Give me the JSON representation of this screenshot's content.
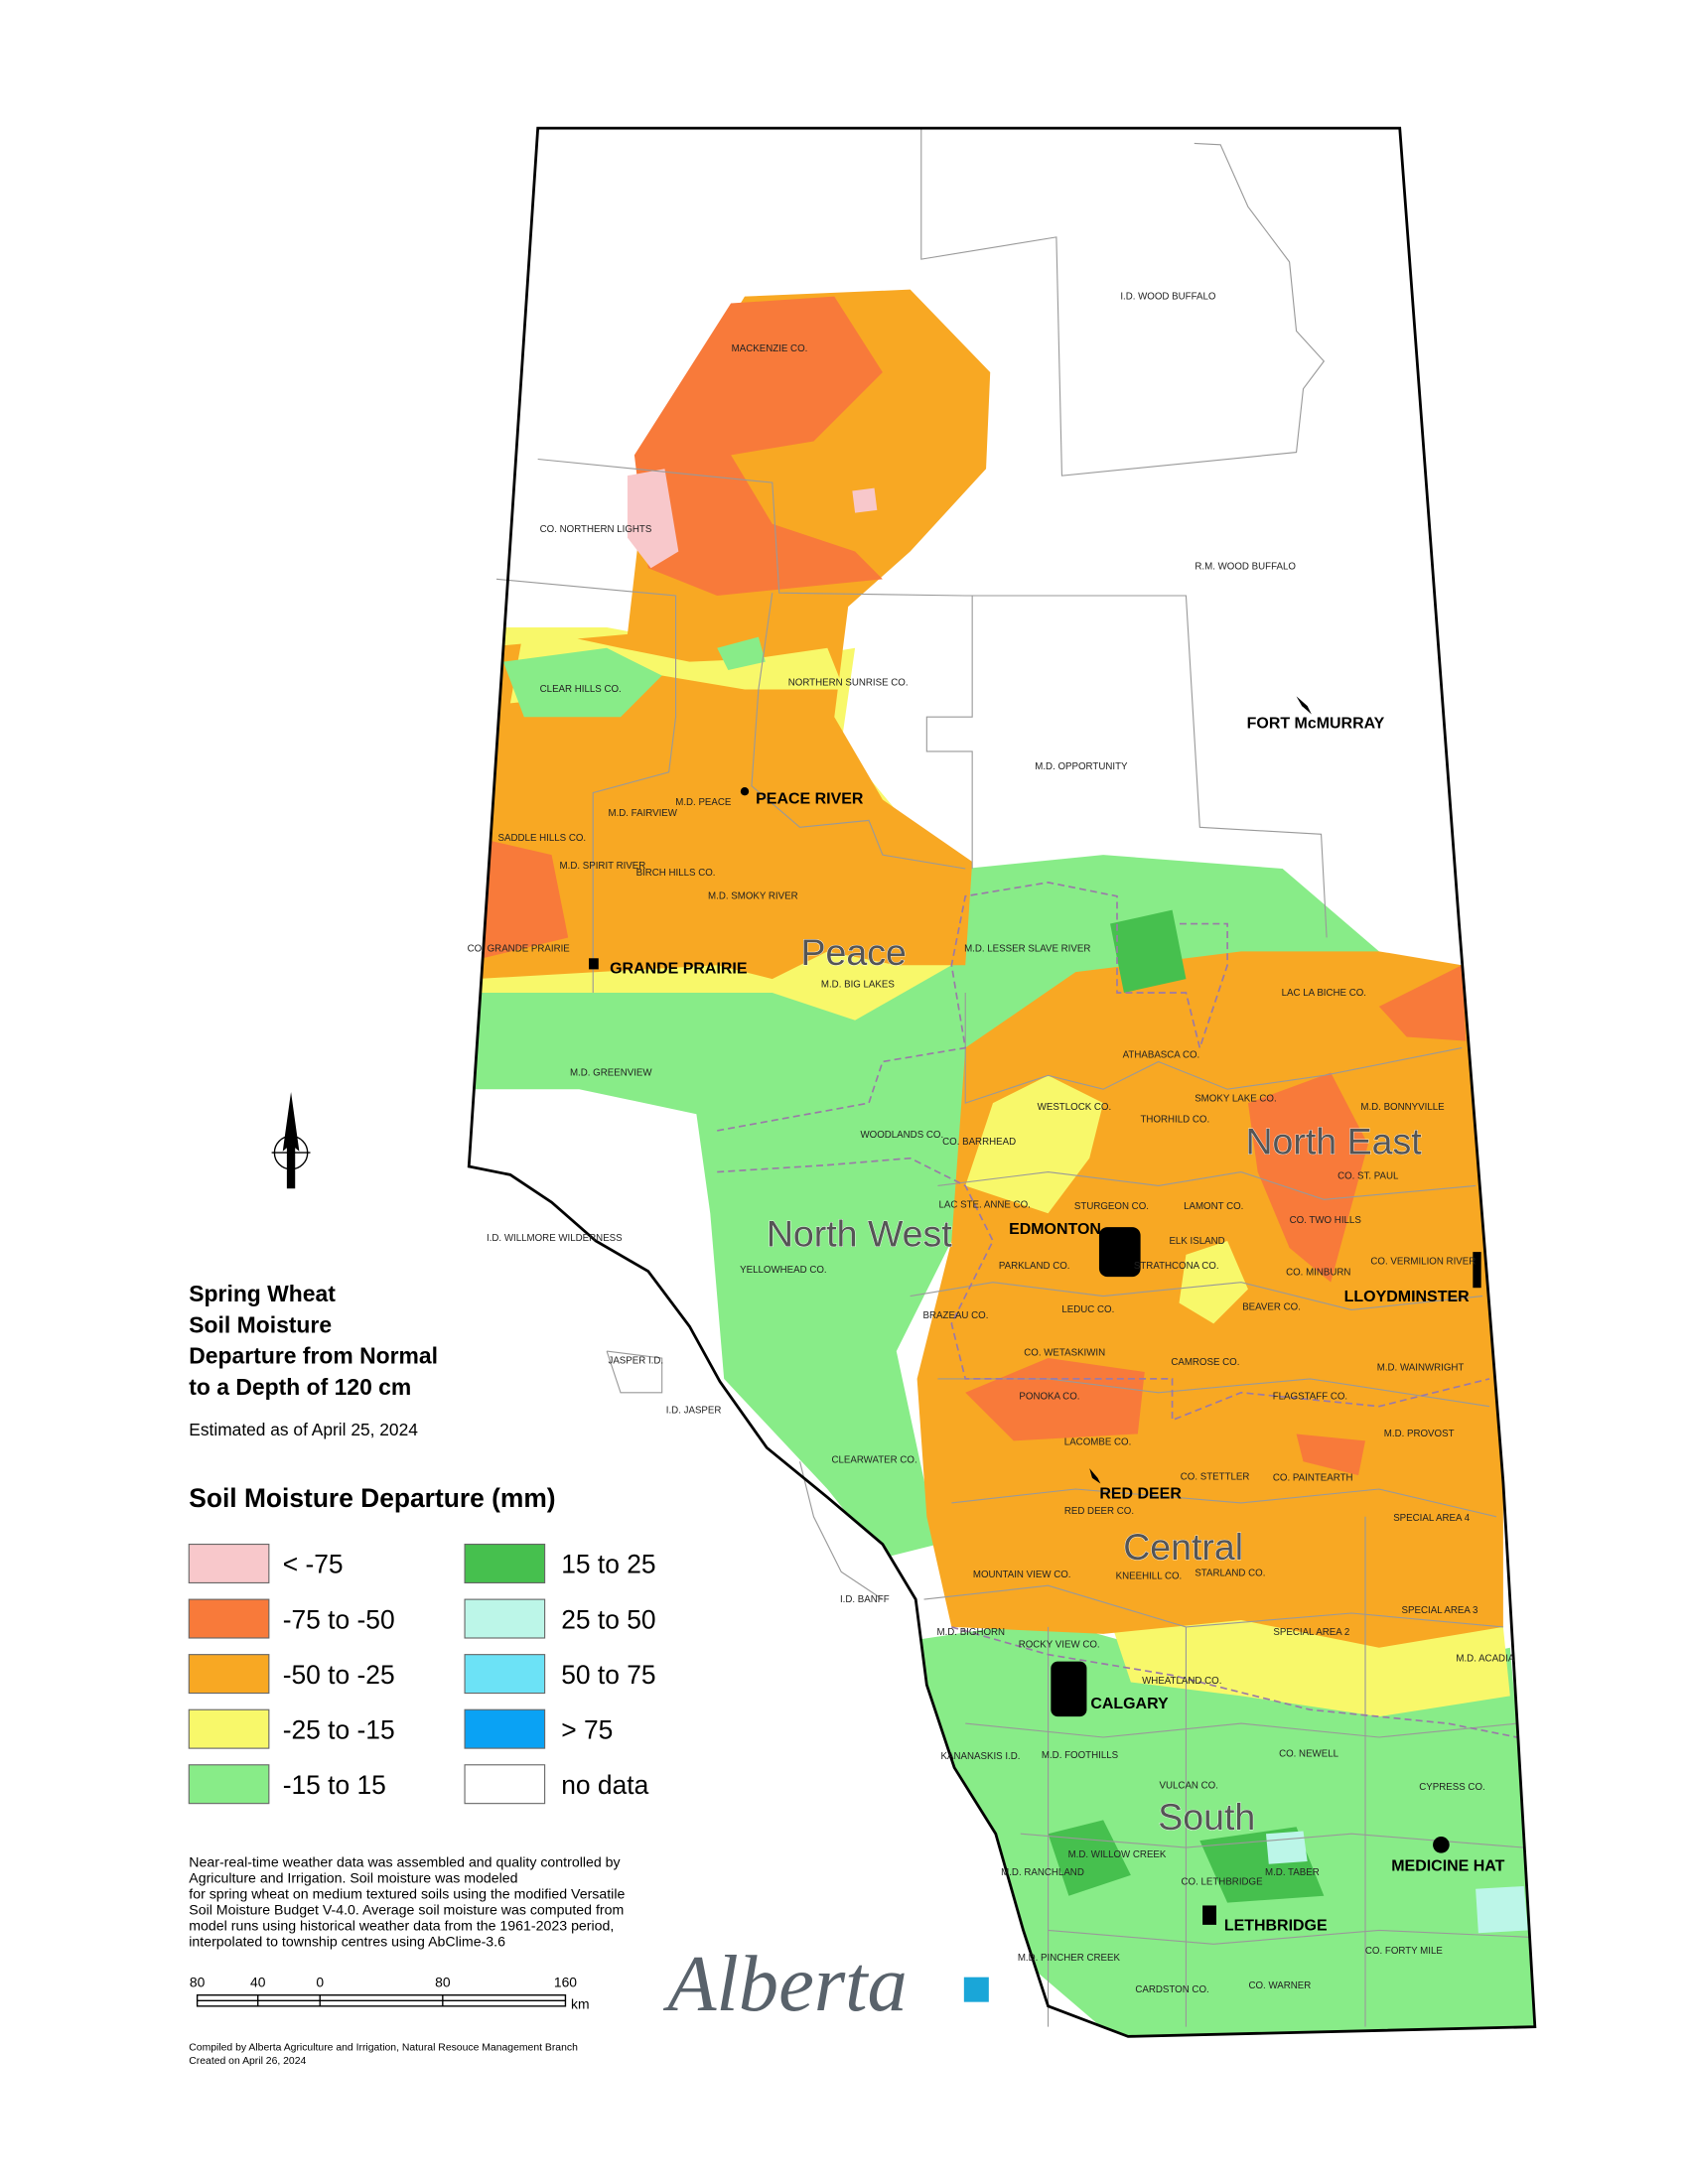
{
  "title": {
    "lines": [
      "Spring Wheat",
      "Soil Moisture",
      "Departure from Normal",
      "to a Depth of 120 cm"
    ],
    "date": "Estimated as of April 25, 2024"
  },
  "legend": {
    "title": "Soil Moisture Departure (mm)",
    "items": [
      {
        "label": "< -75",
        "color": "#f8c8cb"
      },
      {
        "label": "-75 to -50",
        "color": "#f87a3a"
      },
      {
        "label": "-50 to -25",
        "color": "#f8a823"
      },
      {
        "label": "-25 to -15",
        "color": "#f8f86a"
      },
      {
        "label": "-15 to 15",
        "color": "#88ec88"
      },
      {
        "label": "15 to 25",
        "color": "#46c04e"
      },
      {
        "label": "25 to 50",
        "color": "#bcf6e8"
      },
      {
        "label": "50 to 75",
        "color": "#6ce2f6"
      },
      {
        "label": "> 75",
        "color": "#0aa2f4"
      },
      {
        "label": "no data",
        "color": "#ffffff"
      }
    ]
  },
  "regions": [
    "Peace",
    "North East",
    "North West",
    "Central",
    "South"
  ],
  "cities": [
    "FORT McMURRAY",
    "PEACE RIVER",
    "GRANDE PRAIRIE",
    "EDMONTON",
    "LLOYDMINSTER",
    "RED DEER",
    "CALGARY",
    "MEDICINE HAT",
    "LETHBRIDGE"
  ],
  "municipalities": [
    "I.D. WOOD BUFFALO",
    "MACKENZIE CO.",
    "CO. NORTHERN LIGHTS",
    "R.M. WOOD BUFFALO",
    "CLEAR HILLS CO.",
    "NORTHERN SUNRISE CO.",
    "M.D. OPPORTUNITY",
    "M.D. FAIRVIEW",
    "M.D. PEACE",
    "SADDLE HILLS CO.",
    "M.D. SPIRIT RIVER",
    "BIRCH HILLS CO.",
    "M.D. SMOKY RIVER",
    "CO. GRANDE PRAIRIE",
    "M.D. LESSER SLAVE RIVER",
    "M.D. BIG LAKES",
    "LAC LA BICHE CO.",
    "M.D. GREENVIEW",
    "ATHABASCA CO.",
    "WESTLOCK CO.",
    "THORHILD CO.",
    "SMOKY LAKE CO.",
    "M.D. BONNYVILLE",
    "WOODLANDS CO.",
    "CO. BARRHEAD",
    "CO. ST. PAUL",
    "LAC STE. ANNE CO.",
    "STURGEON CO.",
    "LAMONT CO.",
    "CO. TWO HILLS",
    "I.D. WILLMORE WILDERNESS",
    "ELK ISLAND",
    "PARKLAND CO.",
    "STRATHCONA CO.",
    "YELLOWHEAD CO.",
    "CO. MINBURN",
    "CO. VERMILION RIVER",
    "BEAVER CO.",
    "LEDUC CO.",
    "BRAZEAU CO.",
    "CO. WETASKIWIN",
    "CAMROSE CO.",
    "JASPER I.D.",
    "M.D. WAINWRIGHT",
    "PONOKA CO.",
    "FLAGSTAFF CO.",
    "I.D. JASPER",
    "M.D. PROVOST",
    "LACOMBE CO.",
    "CLEARWATER CO.",
    "CO. STETTLER",
    "CO. PAINTEARTH",
    "RED DEER CO.",
    "SPECIAL AREA 4",
    "MOUNTAIN VIEW CO.",
    "KNEEHILL CO.",
    "STARLAND CO.",
    "I.D. BANFF",
    "SPECIAL AREA 3",
    "M.D. BIGHORN",
    "SPECIAL AREA 2",
    "ROCKY VIEW CO.",
    "M.D. ACADIA",
    "WHEATLAND CO.",
    "KANANASKIS I.D.",
    "M.D. FOOTHILLS",
    "CO. NEWELL",
    "VULCAN CO.",
    "CYPRESS CO.",
    "M.D. WILLOW CREEK",
    "M.D. RANCHLAND",
    "CO. LETHBRIDGE",
    "M.D. TABER",
    "M.D. PINCHER CREEK",
    "CO. FORTY MILE",
    "CARDSTON CO.",
    "CO. WARNER"
  ],
  "notes": [
    "Near-real-time weather data was assembled and quality controlled by",
    "Agriculture and Irrigation.  Soil moisture was modeled",
    "for spring wheat on medium textured soils using the modified Versatile",
    "Soil Moisture Budget V-4.0.  Average soil moisture was computed from",
    "model runs using historical weather data from the 1961-2023 period,",
    "interpolated to township centres using AbClime-3.6"
  ],
  "scale_bar": {
    "labels": [
      "80",
      "40",
      "0",
      "80",
      "160"
    ],
    "unit": "km"
  },
  "credits": [
    "Compiled by Alberta Agriculture and Irrigation, Natural Resouce Management Branch",
    "Created on April 26, 2024"
  ],
  "logo": "Alberta"
}
